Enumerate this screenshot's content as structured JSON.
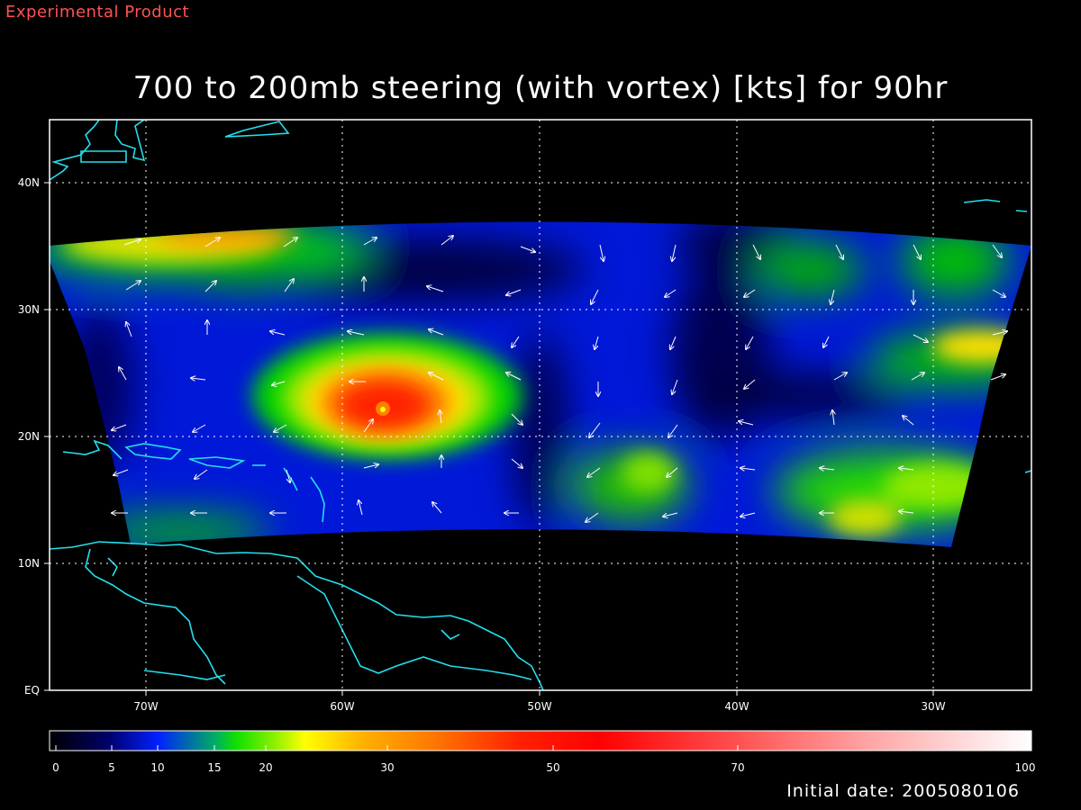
{
  "header": {
    "tag": "Experimental Product",
    "title": "700 to 200mb steering (with vortex) [kts] for 90hr"
  },
  "footer": {
    "initial_date": "Initial date: 2005080106"
  },
  "map": {
    "lon_range": [
      -75,
      -25
    ],
    "lat_range": [
      0,
      45
    ],
    "lon_ticks": [
      {
        "value": -70,
        "label": "70W"
      },
      {
        "value": -60,
        "label": "60W"
      },
      {
        "value": -50,
        "label": "50W"
      },
      {
        "value": -40,
        "label": "40W"
      },
      {
        "value": -30,
        "label": "30W"
      }
    ],
    "lat_ticks": [
      {
        "value": 0,
        "label": "EQ"
      },
      {
        "value": 10,
        "label": "10N"
      },
      {
        "value": 20,
        "label": "20N"
      },
      {
        "value": 30,
        "label": "30N"
      },
      {
        "value": 40,
        "label": "40N"
      }
    ],
    "grid": true,
    "coast_color": "#22e0ee",
    "vortex_center": {
      "lon": -57.8,
      "lat": 22.3
    }
  },
  "colorbar": {
    "min": 0,
    "max": 100,
    "ticks": [
      {
        "value": 0,
        "label": "0"
      },
      {
        "value": 5,
        "label": "5"
      },
      {
        "value": 10,
        "label": "10"
      },
      {
        "value": 15,
        "label": "15"
      },
      {
        "value": 20,
        "label": "20"
      },
      {
        "value": 30,
        "label": "30"
      },
      {
        "value": 50,
        "label": "50"
      },
      {
        "value": 70,
        "label": "70"
      },
      {
        "value": 100,
        "label": "100"
      }
    ]
  }
}
